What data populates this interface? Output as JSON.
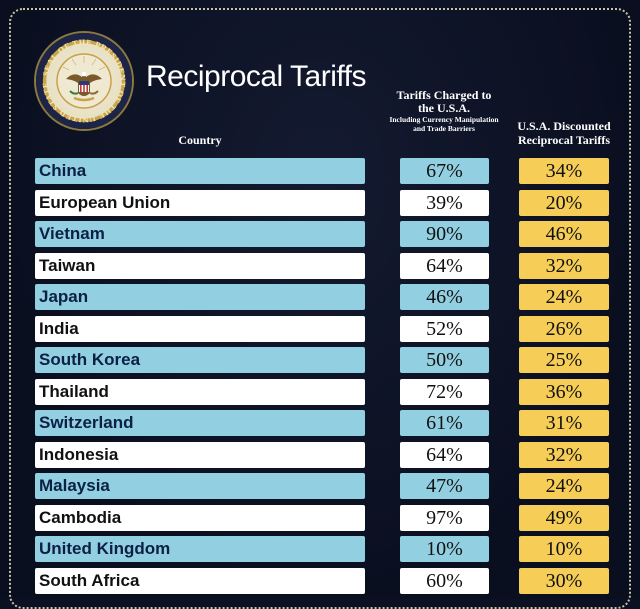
{
  "header": {
    "title": "Reciprocal Tariffs",
    "col_country": "Country",
    "col_charged": "Tariffs Charged to the U.S.A.",
    "col_charged_sub": "Including Currency Manipulation and Trade Barriers",
    "col_discounted": "U.S.A. Discounted Reciprocal Tariffs"
  },
  "seal": {
    "text": "SEAL OF THE PRESIDENT OF THE UNITED STATES"
  },
  "colors": {
    "background": "#0b1122",
    "blue_row": "#92d0e1",
    "white_row": "#ffffff",
    "discount_cell": "#f5cd57"
  },
  "rows": [
    {
      "country": "China",
      "charged": "67%",
      "discounted": "34%"
    },
    {
      "country": "European Union",
      "charged": "39%",
      "discounted": "20%"
    },
    {
      "country": "Vietnam",
      "charged": "90%",
      "discounted": "46%"
    },
    {
      "country": "Taiwan",
      "charged": "64%",
      "discounted": "32%"
    },
    {
      "country": "Japan",
      "charged": "46%",
      "discounted": "24%"
    },
    {
      "country": "India",
      "charged": "52%",
      "discounted": "26%"
    },
    {
      "country": "South Korea",
      "charged": "50%",
      "discounted": "25%"
    },
    {
      "country": "Thailand",
      "charged": "72%",
      "discounted": "36%"
    },
    {
      "country": "Switzerland",
      "charged": "61%",
      "discounted": "31%"
    },
    {
      "country": "Indonesia",
      "charged": "64%",
      "discounted": "32%"
    },
    {
      "country": "Malaysia",
      "charged": "47%",
      "discounted": "24%"
    },
    {
      "country": "Cambodia",
      "charged": "97%",
      "discounted": "49%"
    },
    {
      "country": "United Kingdom",
      "charged": "10%",
      "discounted": "10%"
    },
    {
      "country": "South Africa",
      "charged": "60%",
      "discounted": "30%"
    }
  ]
}
